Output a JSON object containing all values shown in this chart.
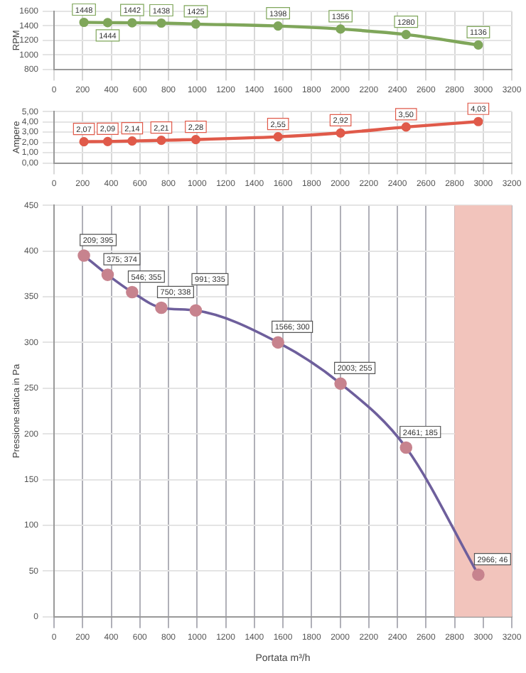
{
  "chart_data": [
    {
      "type": "line",
      "ylabel": "RPM",
      "x": [
        209,
        375,
        546,
        750,
        991,
        1566,
        2003,
        2461,
        2966
      ],
      "xlim": [
        0,
        3200
      ],
      "xticks": [
        0,
        200,
        400,
        600,
        800,
        1000,
        1200,
        1400,
        1600,
        1800,
        2000,
        2200,
        2400,
        2600,
        2800,
        3000,
        3200
      ],
      "ylim": [
        800,
        1600
      ],
      "yticks": [
        800,
        1000,
        1200,
        1400,
        1600
      ],
      "grid": true,
      "marker": "circle",
      "legend": false,
      "series": [
        {
          "color": "#7fa65a",
          "values": [
            1448,
            1444,
            1442,
            1438,
            1425,
            1398,
            1356,
            1280,
            1136
          ],
          "value_labels": [
            "1448",
            "1444",
            "1442",
            "1438",
            "1425",
            "1398",
            "1356",
            "1280",
            "1136"
          ]
        }
      ]
    },
    {
      "type": "line",
      "ylabel": "Ampere",
      "x": [
        209,
        375,
        546,
        750,
        991,
        1566,
        2003,
        2461,
        2966
      ],
      "xlim": [
        0,
        3200
      ],
      "xticks": [
        0,
        200,
        400,
        600,
        800,
        1000,
        1200,
        1400,
        1600,
        1800,
        2000,
        2200,
        2400,
        2600,
        2800,
        3000,
        3200
      ],
      "ylim": [
        0,
        5
      ],
      "yticks": [
        {
          "value": 0,
          "label": "0,00"
        },
        {
          "value": 1,
          "label": "1,00"
        },
        {
          "value": 2,
          "label": "2,00"
        },
        {
          "value": 3,
          "label": "3,00"
        },
        {
          "value": 4,
          "label": "4,00"
        },
        {
          "value": 5,
          "label": "5,00"
        }
      ],
      "grid": true,
      "marker": "circle",
      "legend": false,
      "series": [
        {
          "color": "#e05a4a",
          "values": [
            2.07,
            2.09,
            2.14,
            2.21,
            2.28,
            2.55,
            2.92,
            3.5,
            4.03
          ],
          "value_labels": [
            "2,07",
            "2,09",
            "2,14",
            "2,21",
            "2,28",
            "2,55",
            "2,92",
            "3,50",
            "4,03"
          ]
        }
      ]
    },
    {
      "type": "line",
      "xlabel": "Portata m³/h",
      "ylabel": "Pressione statica in Pa",
      "x": [
        209,
        375,
        546,
        750,
        991,
        1566,
        2003,
        2461,
        2966
      ],
      "xlim": [
        0,
        3200
      ],
      "xticks": [
        0,
        200,
        400,
        600,
        800,
        1000,
        1200,
        1400,
        1600,
        1800,
        2000,
        2200,
        2400,
        2600,
        2800,
        3000,
        3200
      ],
      "ylim": [
        0,
        450
      ],
      "yticks": [
        0,
        50,
        100,
        150,
        200,
        250,
        300,
        350,
        400,
        450
      ],
      "grid": true,
      "marker": "circle",
      "legend": false,
      "bands": [
        {
          "axis": "x",
          "from": 2800,
          "to": 3200,
          "color": "#f2c4bc"
        }
      ],
      "series": [
        {
          "color": "#6e5f9c",
          "values": [
            395,
            374,
            355,
            338,
            335,
            300,
            255,
            185,
            46
          ],
          "value_labels": [
            "209; 395",
            "375; 374",
            "546; 355",
            "750; 338",
            "991; 335",
            "1566; 300",
            "2003; 255",
            "2461; 185",
            "2966; 46"
          ]
        }
      ]
    }
  ]
}
